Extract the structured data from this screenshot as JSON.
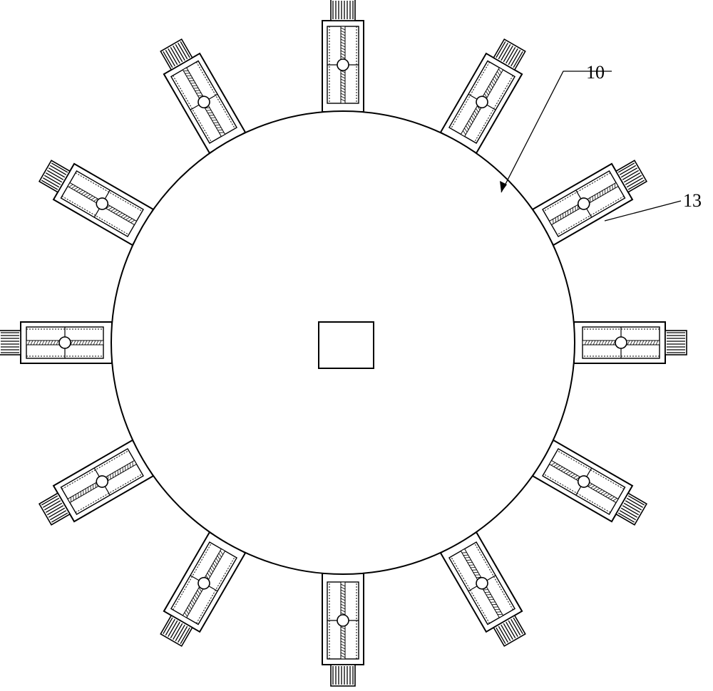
{
  "diagram": {
    "labels": [
      {
        "id": "label-10",
        "text": "10"
      },
      {
        "id": "label-13",
        "text": "13"
      }
    ],
    "unit_count": 12,
    "has_center_square": true,
    "stroke_color": "#000000",
    "background_color": "#ffffff"
  }
}
